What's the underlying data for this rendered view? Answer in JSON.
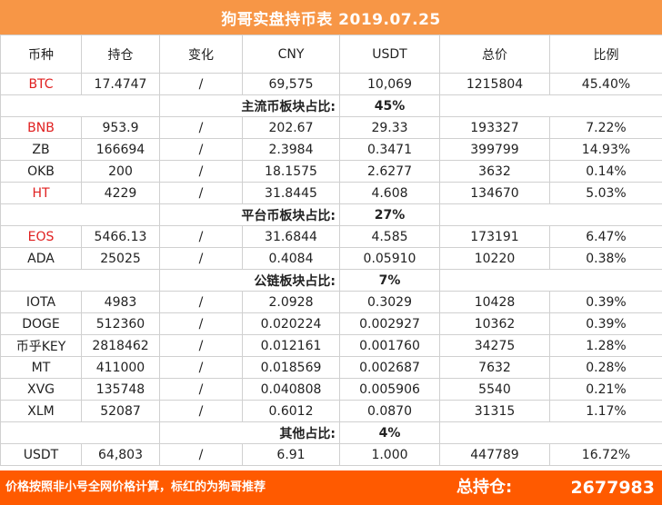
{
  "title": "狗哥实盘持币表  2019.07.25",
  "headers": [
    "币种",
    "持仓",
    "变化",
    "CNY",
    "USDT",
    "总价",
    "比例"
  ],
  "accent_colors": {
    "title_bar": "#F79646",
    "footer": "#FF5A00",
    "highlight_text": "#e02020"
  },
  "rows": [
    {
      "kind": "coin",
      "coin": "BTC",
      "red": true,
      "holding": "17.4747",
      "change": "/",
      "cny": "69,575",
      "usdt": "10,069",
      "total": "1215804",
      "ratio": "45.40%"
    },
    {
      "kind": "sector",
      "label": "主流币板块占比:",
      "value": "45%"
    },
    {
      "kind": "coin",
      "coin": "BNB",
      "red": true,
      "holding": "953.9",
      "change": "/",
      "cny": "202.67",
      "usdt": "29.33",
      "total": "193327",
      "ratio": "7.22%"
    },
    {
      "kind": "coin",
      "coin": "ZB",
      "red": false,
      "holding": "166694",
      "change": "/",
      "cny": "2.3984",
      "usdt": "0.3471",
      "total": "399799",
      "ratio": "14.93%"
    },
    {
      "kind": "coin",
      "coin": "OKB",
      "red": false,
      "holding": "200",
      "change": "/",
      "cny": "18.1575",
      "usdt": "2.6277",
      "total": "3632",
      "ratio": "0.14%"
    },
    {
      "kind": "coin",
      "coin": "HT",
      "red": true,
      "holding": "4229",
      "change": "/",
      "cny": "31.8445",
      "usdt": "4.608",
      "total": "134670",
      "ratio": "5.03%"
    },
    {
      "kind": "sector",
      "label": "平台币板块占比:",
      "value": "27%"
    },
    {
      "kind": "coin",
      "coin": "EOS",
      "red": true,
      "holding": "5466.13",
      "change": "/",
      "cny": "31.6844",
      "usdt": "4.585",
      "total": "173191",
      "ratio": "6.47%"
    },
    {
      "kind": "coin",
      "coin": "ADA",
      "red": false,
      "holding": "25025",
      "change": "/",
      "cny": "0.4084",
      "usdt": "0.05910",
      "total": "10220",
      "ratio": "0.38%"
    },
    {
      "kind": "sector",
      "label": "公链板块占比:",
      "value": "7%"
    },
    {
      "kind": "coin",
      "coin": "IOTA",
      "red": false,
      "holding": "4983",
      "change": "/",
      "cny": "2.0928",
      "usdt": "0.3029",
      "total": "10428",
      "ratio": "0.39%"
    },
    {
      "kind": "coin",
      "coin": "DOGE",
      "red": false,
      "holding": "512360",
      "change": "/",
      "cny": "0.020224",
      "usdt": "0.002927",
      "total": "10362",
      "ratio": "0.39%"
    },
    {
      "kind": "coin",
      "coin": "币乎KEY",
      "red": false,
      "holding": "2818462",
      "change": "/",
      "cny": "0.012161",
      "usdt": "0.001760",
      "total": "34275",
      "ratio": "1.28%"
    },
    {
      "kind": "coin",
      "coin": "MT",
      "red": false,
      "holding": "411000",
      "change": "/",
      "cny": "0.018569",
      "usdt": "0.002687",
      "total": "7632",
      "ratio": "0.28%"
    },
    {
      "kind": "coin",
      "coin": "XVG",
      "red": false,
      "holding": "135748",
      "change": "/",
      "cny": "0.040808",
      "usdt": "0.005906",
      "total": "5540",
      "ratio": "0.21%"
    },
    {
      "kind": "coin",
      "coin": "XLM",
      "red": false,
      "holding": "52087",
      "change": "/",
      "cny": "0.6012",
      "usdt": "0.0870",
      "total": "31315",
      "ratio": "1.17%"
    },
    {
      "kind": "sector",
      "label": "其他占比:",
      "value": "4%"
    },
    {
      "kind": "coin",
      "coin": "USDT",
      "red": false,
      "holding": "64,803",
      "change": "/",
      "cny": "6.91",
      "usdt": "1.000",
      "total": "447789",
      "ratio": "16.72%"
    }
  ],
  "footer": {
    "note": "价格按照非小号全网价格计算，标红的为狗哥推荐",
    "total_label": "总持仓:",
    "total_value": "2677983"
  }
}
